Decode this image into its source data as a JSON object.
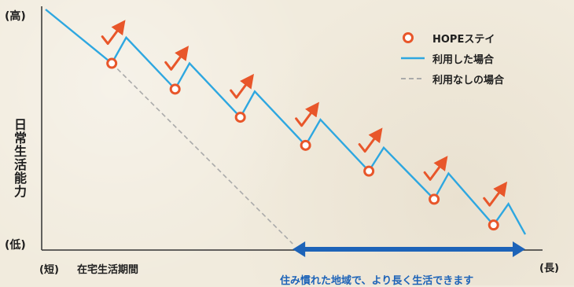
{
  "chart_data": {
    "type": "line",
    "x_label": "在宅生活期間",
    "x_low_label": "(短)",
    "x_high_label": "(長)",
    "y_label": "日常生活能力",
    "y_high_label": "(高)",
    "y_low_label": "(低)",
    "series": [
      {
        "name": "利用した場合",
        "style": "solid",
        "color": "#2ea7e0",
        "x": [
          0.0,
          0.138,
          0.168,
          0.27,
          0.3,
          0.406,
          0.436,
          0.542,
          0.573,
          0.674,
          0.705,
          0.81,
          0.84,
          0.934,
          0.965,
          1.0
        ],
        "y": [
          1.0,
          0.77,
          0.88,
          0.66,
          0.77,
          0.54,
          0.65,
          0.42,
          0.53,
          0.31,
          0.41,
          0.19,
          0.3,
          0.08,
          0.17,
          0.04
        ]
      },
      {
        "name": "利用なしの場合",
        "style": "dashed",
        "color": "#aaaaaa",
        "x": [
          0.138,
          0.515
        ],
        "y": [
          0.77,
          0.0
        ]
      }
    ],
    "markers": {
      "name": "HOPEステイ",
      "color": "#e8562a",
      "x": [
        0.138,
        0.27,
        0.406,
        0.542,
        0.674,
        0.81,
        0.934
      ],
      "y": [
        0.77,
        0.66,
        0.54,
        0.42,
        0.31,
        0.19,
        0.08
      ]
    },
    "legend": [
      "HOPEステイ",
      "利用した場合",
      "利用なしの場合"
    ],
    "legend_position": "top-right",
    "annotation": {
      "text": "住み慣れた地域で、より長く生活できます",
      "color": "#1d63b8",
      "x_from": 0.515,
      "x_to": 1.0
    }
  }
}
